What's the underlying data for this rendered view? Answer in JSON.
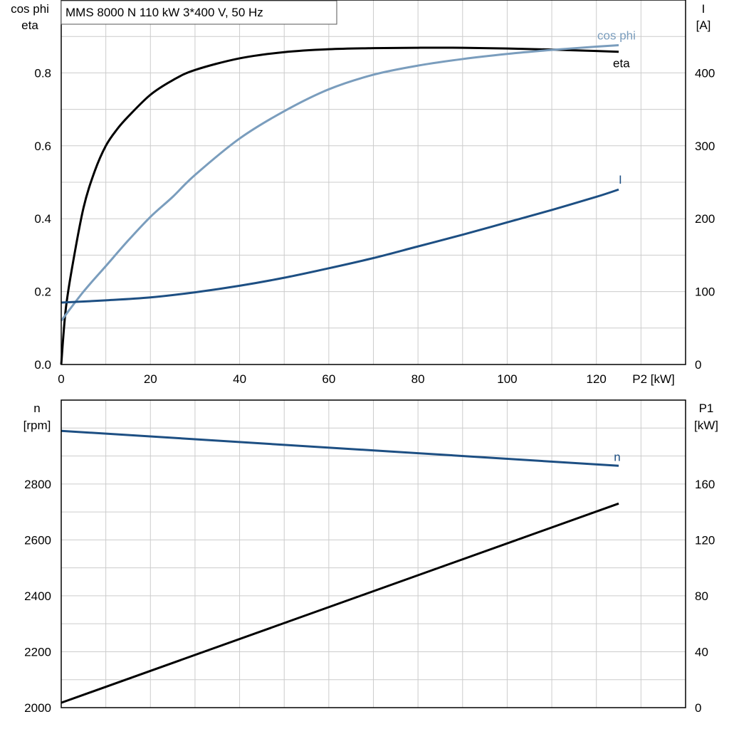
{
  "colors": {
    "eta": "#000000",
    "cosphi": "#7a9dbd",
    "current": "#1d4f83",
    "speed": "#1d4f83",
    "p1": "#000000",
    "grid": "#cccccc"
  },
  "chart_data": [
    {
      "type": "line",
      "title": "MMS 8000 N   110 kW   3*400 V, 50 Hz",
      "xlabel": "P2 [kW]",
      "ylabel_left": [
        "cos phi",
        "eta"
      ],
      "ylabel_right": [
        "I",
        "[A]"
      ],
      "xlim": [
        0,
        140
      ],
      "ylim_left": [
        0,
        1.0
      ],
      "ylim_right": [
        0,
        500
      ],
      "x_ticks": [
        0,
        20,
        40,
        60,
        80,
        100,
        120
      ],
      "y_ticks_left": [
        "0.0",
        "0.2",
        "0.4",
        "0.6",
        "0.8"
      ],
      "y_ticks_right": [
        "0",
        "100",
        "200",
        "300",
        "400"
      ],
      "grid": true,
      "series": [
        {
          "name": "eta",
          "axis": "left",
          "color": "#000000",
          "x": [
            0,
            1,
            2.5,
            5,
            7.5,
            10,
            12.5,
            15,
            20,
            25,
            30,
            40,
            50,
            60,
            70,
            80,
            90,
            100,
            110,
            120,
            125
          ],
          "y": [
            0.0,
            0.15,
            0.27,
            0.43,
            0.53,
            0.6,
            0.645,
            0.68,
            0.74,
            0.78,
            0.808,
            0.84,
            0.857,
            0.865,
            0.868,
            0.869,
            0.869,
            0.867,
            0.864,
            0.86,
            0.858
          ]
        },
        {
          "name": "cos phi",
          "axis": "left",
          "color": "#7a9dbd",
          "x": [
            0,
            5,
            10,
            15,
            20,
            25,
            30,
            40,
            50,
            60,
            70,
            80,
            90,
            100,
            110,
            120,
            125
          ],
          "y": [
            0.12,
            0.2,
            0.27,
            0.34,
            0.405,
            0.46,
            0.52,
            0.62,
            0.695,
            0.755,
            0.795,
            0.82,
            0.838,
            0.852,
            0.863,
            0.872,
            0.876
          ]
        },
        {
          "name": "I",
          "axis": "right",
          "color": "#1d4f83",
          "x": [
            0,
            10,
            20,
            30,
            40,
            50,
            60,
            70,
            80,
            90,
            100,
            110,
            120,
            125
          ],
          "y": [
            85,
            88,
            92,
            99,
            108,
            119,
            132,
            146,
            162,
            178,
            195,
            212,
            230,
            240
          ]
        }
      ]
    },
    {
      "type": "line",
      "ylabel_left": [
        "n",
        "[rpm]"
      ],
      "ylabel_right": [
        "P1",
        "[kW]"
      ],
      "xlim": [
        0,
        140
      ],
      "ylim_left": [
        2000,
        3100
      ],
      "ylim_right": [
        0,
        220
      ],
      "y_ticks_left": [
        "2000",
        "2200",
        "2400",
        "2600",
        "2800"
      ],
      "y_ticks_right": [
        "0",
        "40",
        "80",
        "120",
        "160"
      ],
      "grid": true,
      "series": [
        {
          "name": "n",
          "axis": "left",
          "color": "#1d4f83",
          "x": [
            0,
            125
          ],
          "y": [
            2990,
            2865
          ]
        },
        {
          "axis": "right",
          "color": "#000000",
          "x": [
            0,
            125
          ],
          "y": [
            3.5,
            146
          ]
        }
      ]
    }
  ]
}
